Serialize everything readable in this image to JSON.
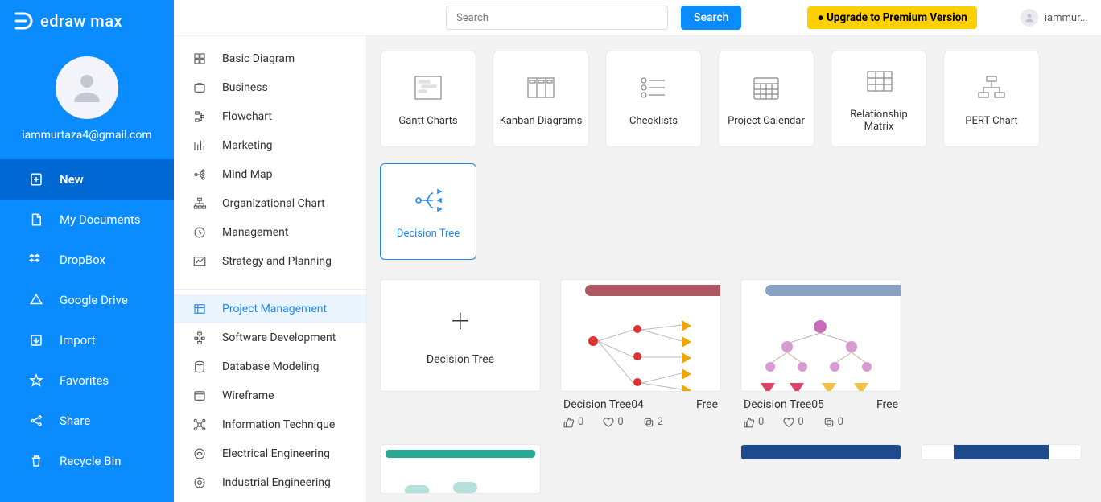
{
  "brand": {
    "name": "edraw max"
  },
  "user": {
    "email": "iammurtaza4@gmail.com",
    "short": "iammur..."
  },
  "topbar": {
    "search_placeholder": "Search",
    "search_btn": "Search",
    "upgrade": "● Upgrade to Premium Version"
  },
  "nav": {
    "items": [
      {
        "id": "new",
        "label": "New",
        "icon": "plus-file",
        "active": true
      },
      {
        "id": "mydocs",
        "label": "My Documents",
        "icon": "doc"
      },
      {
        "id": "dropbox",
        "label": "DropBox",
        "icon": "dropbox"
      },
      {
        "id": "gdrive",
        "label": "Google Drive",
        "icon": "gdrive"
      },
      {
        "id": "import",
        "label": "Import",
        "icon": "import"
      },
      {
        "id": "favorites",
        "label": "Favorites",
        "icon": "star"
      },
      {
        "id": "share",
        "label": "Share",
        "icon": "share"
      },
      {
        "id": "recycle",
        "label": "Recycle Bin",
        "icon": "trash"
      }
    ]
  },
  "categories": {
    "group1": [
      {
        "label": "Basic Diagram"
      },
      {
        "label": "Business"
      },
      {
        "label": "Flowchart"
      },
      {
        "label": "Marketing"
      },
      {
        "label": "Mind Map"
      },
      {
        "label": "Organizational Chart"
      },
      {
        "label": "Management"
      },
      {
        "label": "Strategy and Planning"
      }
    ],
    "group2": [
      {
        "label": "Project Management",
        "selected": true
      },
      {
        "label": "Software Development"
      },
      {
        "label": "Database Modeling"
      },
      {
        "label": "Wireframe"
      },
      {
        "label": "Information Technique"
      },
      {
        "label": "Electrical Engineering"
      },
      {
        "label": "Industrial Engineering"
      }
    ]
  },
  "diagram_types": [
    {
      "label": "Gantt Charts"
    },
    {
      "label": "Kanban Diagrams"
    },
    {
      "label": "Checklists"
    },
    {
      "label": "Project Calendar"
    },
    {
      "label": "Relationship Matrix"
    },
    {
      "label": "PERT Chart"
    },
    {
      "label": "Decision Tree",
      "selected": true
    }
  ],
  "templates": {
    "blank_label": "Decision Tree",
    "cards": [
      {
        "title": "Decision Tree04",
        "price": "Free",
        "likes": "0",
        "favs": "0",
        "copies": "2",
        "accent": "#a03a46"
      },
      {
        "title": "Decision Tree05",
        "price": "Free",
        "likes": "0",
        "favs": "0",
        "copies": "0",
        "accent": "#6b8bb5"
      }
    ],
    "row2_accent_a": "#2aa896",
    "row2_accent_b": "#1f4b8e"
  },
  "colors": {
    "blue": "#0a8cff",
    "blue_dark": "#0068d3",
    "sel_bg": "#eaf4ff",
    "sel_fg": "#1b87f2",
    "yellow": "#ffd000",
    "panel": "#f3f3f4"
  }
}
